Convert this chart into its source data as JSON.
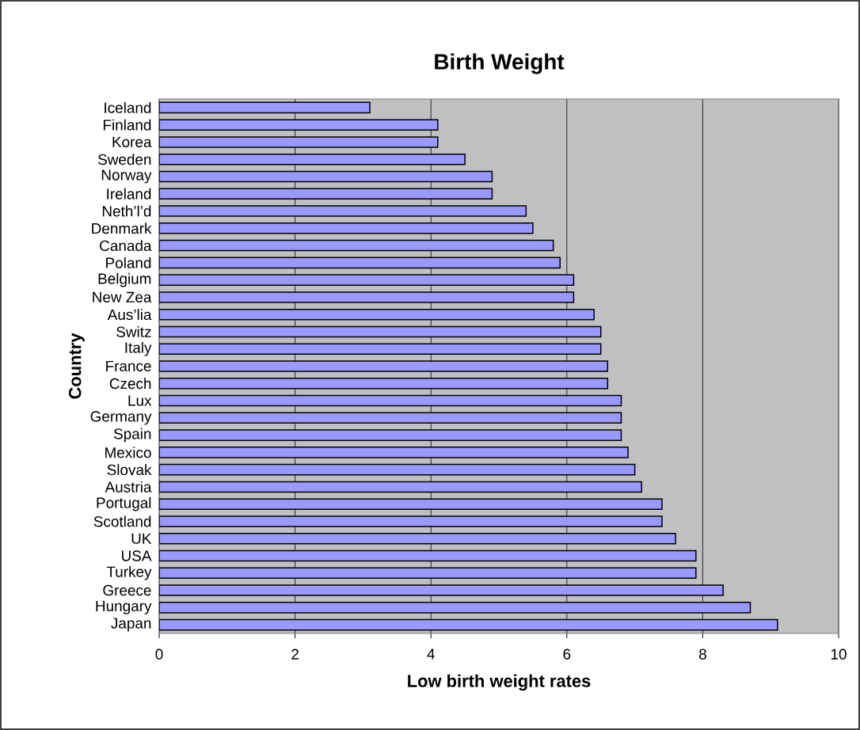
{
  "chart_data": {
    "type": "bar",
    "orientation": "horizontal",
    "title": "Birth Weight",
    "xlabel": "Low birth weight rates",
    "ylabel": "Country",
    "categories": [
      "Iceland",
      "Finland",
      "Korea",
      "Sweden",
      "Norway",
      "Ireland",
      "Neth’l’d",
      "Denmark",
      "Canada",
      "Poland",
      "Belgium",
      "New Zea",
      "Aus’lia",
      "Switz",
      "Italy",
      "France",
      "Czech",
      "Lux",
      "Germany",
      "Spain",
      "Mexico",
      "Slovak",
      "Austria",
      "Portugal",
      "Scotland",
      "UK",
      "USA",
      "Turkey",
      "Greece",
      "Hungary",
      "Japan"
    ],
    "values": [
      3.1,
      4.1,
      4.1,
      4.5,
      4.9,
      4.9,
      5.4,
      5.5,
      5.8,
      5.9,
      6.1,
      6.1,
      6.4,
      6.5,
      6.5,
      6.6,
      6.6,
      6.8,
      6.8,
      6.8,
      6.9,
      7.0,
      7.1,
      7.4,
      7.4,
      7.6,
      7.9,
      7.9,
      8.3,
      8.7,
      9.1
    ],
    "color": "#9999ff",
    "xlim": [
      0,
      10
    ],
    "xticks": [
      0,
      2,
      4,
      6,
      8,
      10
    ],
    "grid": "x"
  }
}
